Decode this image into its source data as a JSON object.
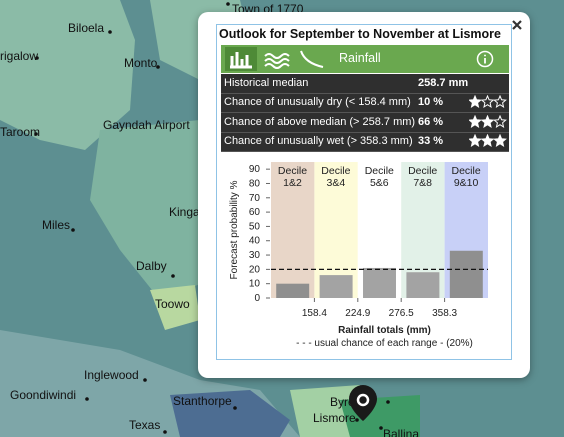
{
  "map": {
    "places": [
      "Town of 1770",
      "Biloela",
      "rigalow",
      "Monto",
      "Taroom",
      "Gayndah Airport",
      "Miles",
      "Kinga",
      "Dalby",
      "Toowo",
      "Inglewood",
      "Goondiwindi",
      "Stanthorpe",
      "Texas",
      "Byro",
      "Lismore",
      "Ballina"
    ]
  },
  "popup": {
    "title": "Outlook for September to November at Lismore",
    "tab": "Rainfall",
    "rows": [
      {
        "label": "Historical median",
        "value": "258.7 mm"
      },
      {
        "label": "Chance of unusually dry (< 158.4 mm)",
        "value": "10 %",
        "stars": 1
      },
      {
        "label": "Chance of above median (> 258.7 mm)",
        "value": "66 %",
        "stars": 2
      },
      {
        "label": "Chance of unusually wet (> 358.3 mm)",
        "value": "33 %",
        "stars": 3
      }
    ]
  },
  "chart_data": {
    "type": "bar",
    "categories": [
      "Decile 1&2",
      "Decile 3&4",
      "Decile 5&6",
      "Decile 7&8",
      "Decile 9&10"
    ],
    "values": [
      10,
      16,
      21,
      18,
      33
    ],
    "colors": [
      "#8f8f8f",
      "#a3a3a3",
      "#a3a3a3",
      "#a3a3a3",
      "#8f8f8f"
    ],
    "band_colors": [
      "#e8d6c8",
      "#fdfbd8",
      "#ffffff",
      "#e2f1e8",
      "#c8d0f7"
    ],
    "xticks": [
      158.4,
      224.9,
      276.5,
      358.3
    ],
    "ylim": [
      0,
      95
    ],
    "yticks": [
      0,
      10,
      20,
      30,
      40,
      50,
      60,
      70,
      80,
      90
    ],
    "reference": 20,
    "ylabel": "Forecast probability %",
    "xlabel": "Rainfall totals (mm)",
    "note": "- - - usual chance of each range - (20%)"
  }
}
